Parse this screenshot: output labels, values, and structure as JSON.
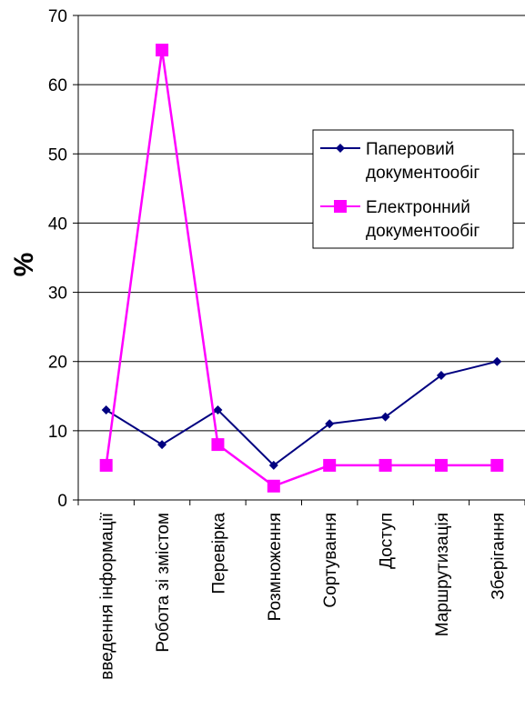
{
  "chart_data": {
    "type": "line",
    "title": "",
    "xlabel": "",
    "ylabel": "%",
    "ylim": [
      0,
      70
    ],
    "yticks": [
      0,
      10,
      20,
      30,
      40,
      50,
      60,
      70
    ],
    "grid": true,
    "legend_position": "right",
    "categories": [
      "введення інформації",
      "Робота зі змістом",
      "Перевірка",
      "Розмноження",
      "Сортування",
      "Доступ",
      "Маршрутизація",
      "Зберігання"
    ],
    "series": [
      {
        "name": "Паперовий документообіг",
        "legend_lines": [
          "Паперовий",
          "документообіг"
        ],
        "color": "#000080",
        "marker": "diamond",
        "values": [
          13,
          8,
          13,
          5,
          11,
          12,
          18,
          20
        ]
      },
      {
        "name": "Електронний документообіг",
        "legend_lines": [
          "Електронний",
          "документообіг"
        ],
        "color": "#ff00ff",
        "marker": "square",
        "values": [
          5,
          65,
          8,
          2,
          5,
          5,
          5,
          5
        ]
      }
    ]
  }
}
